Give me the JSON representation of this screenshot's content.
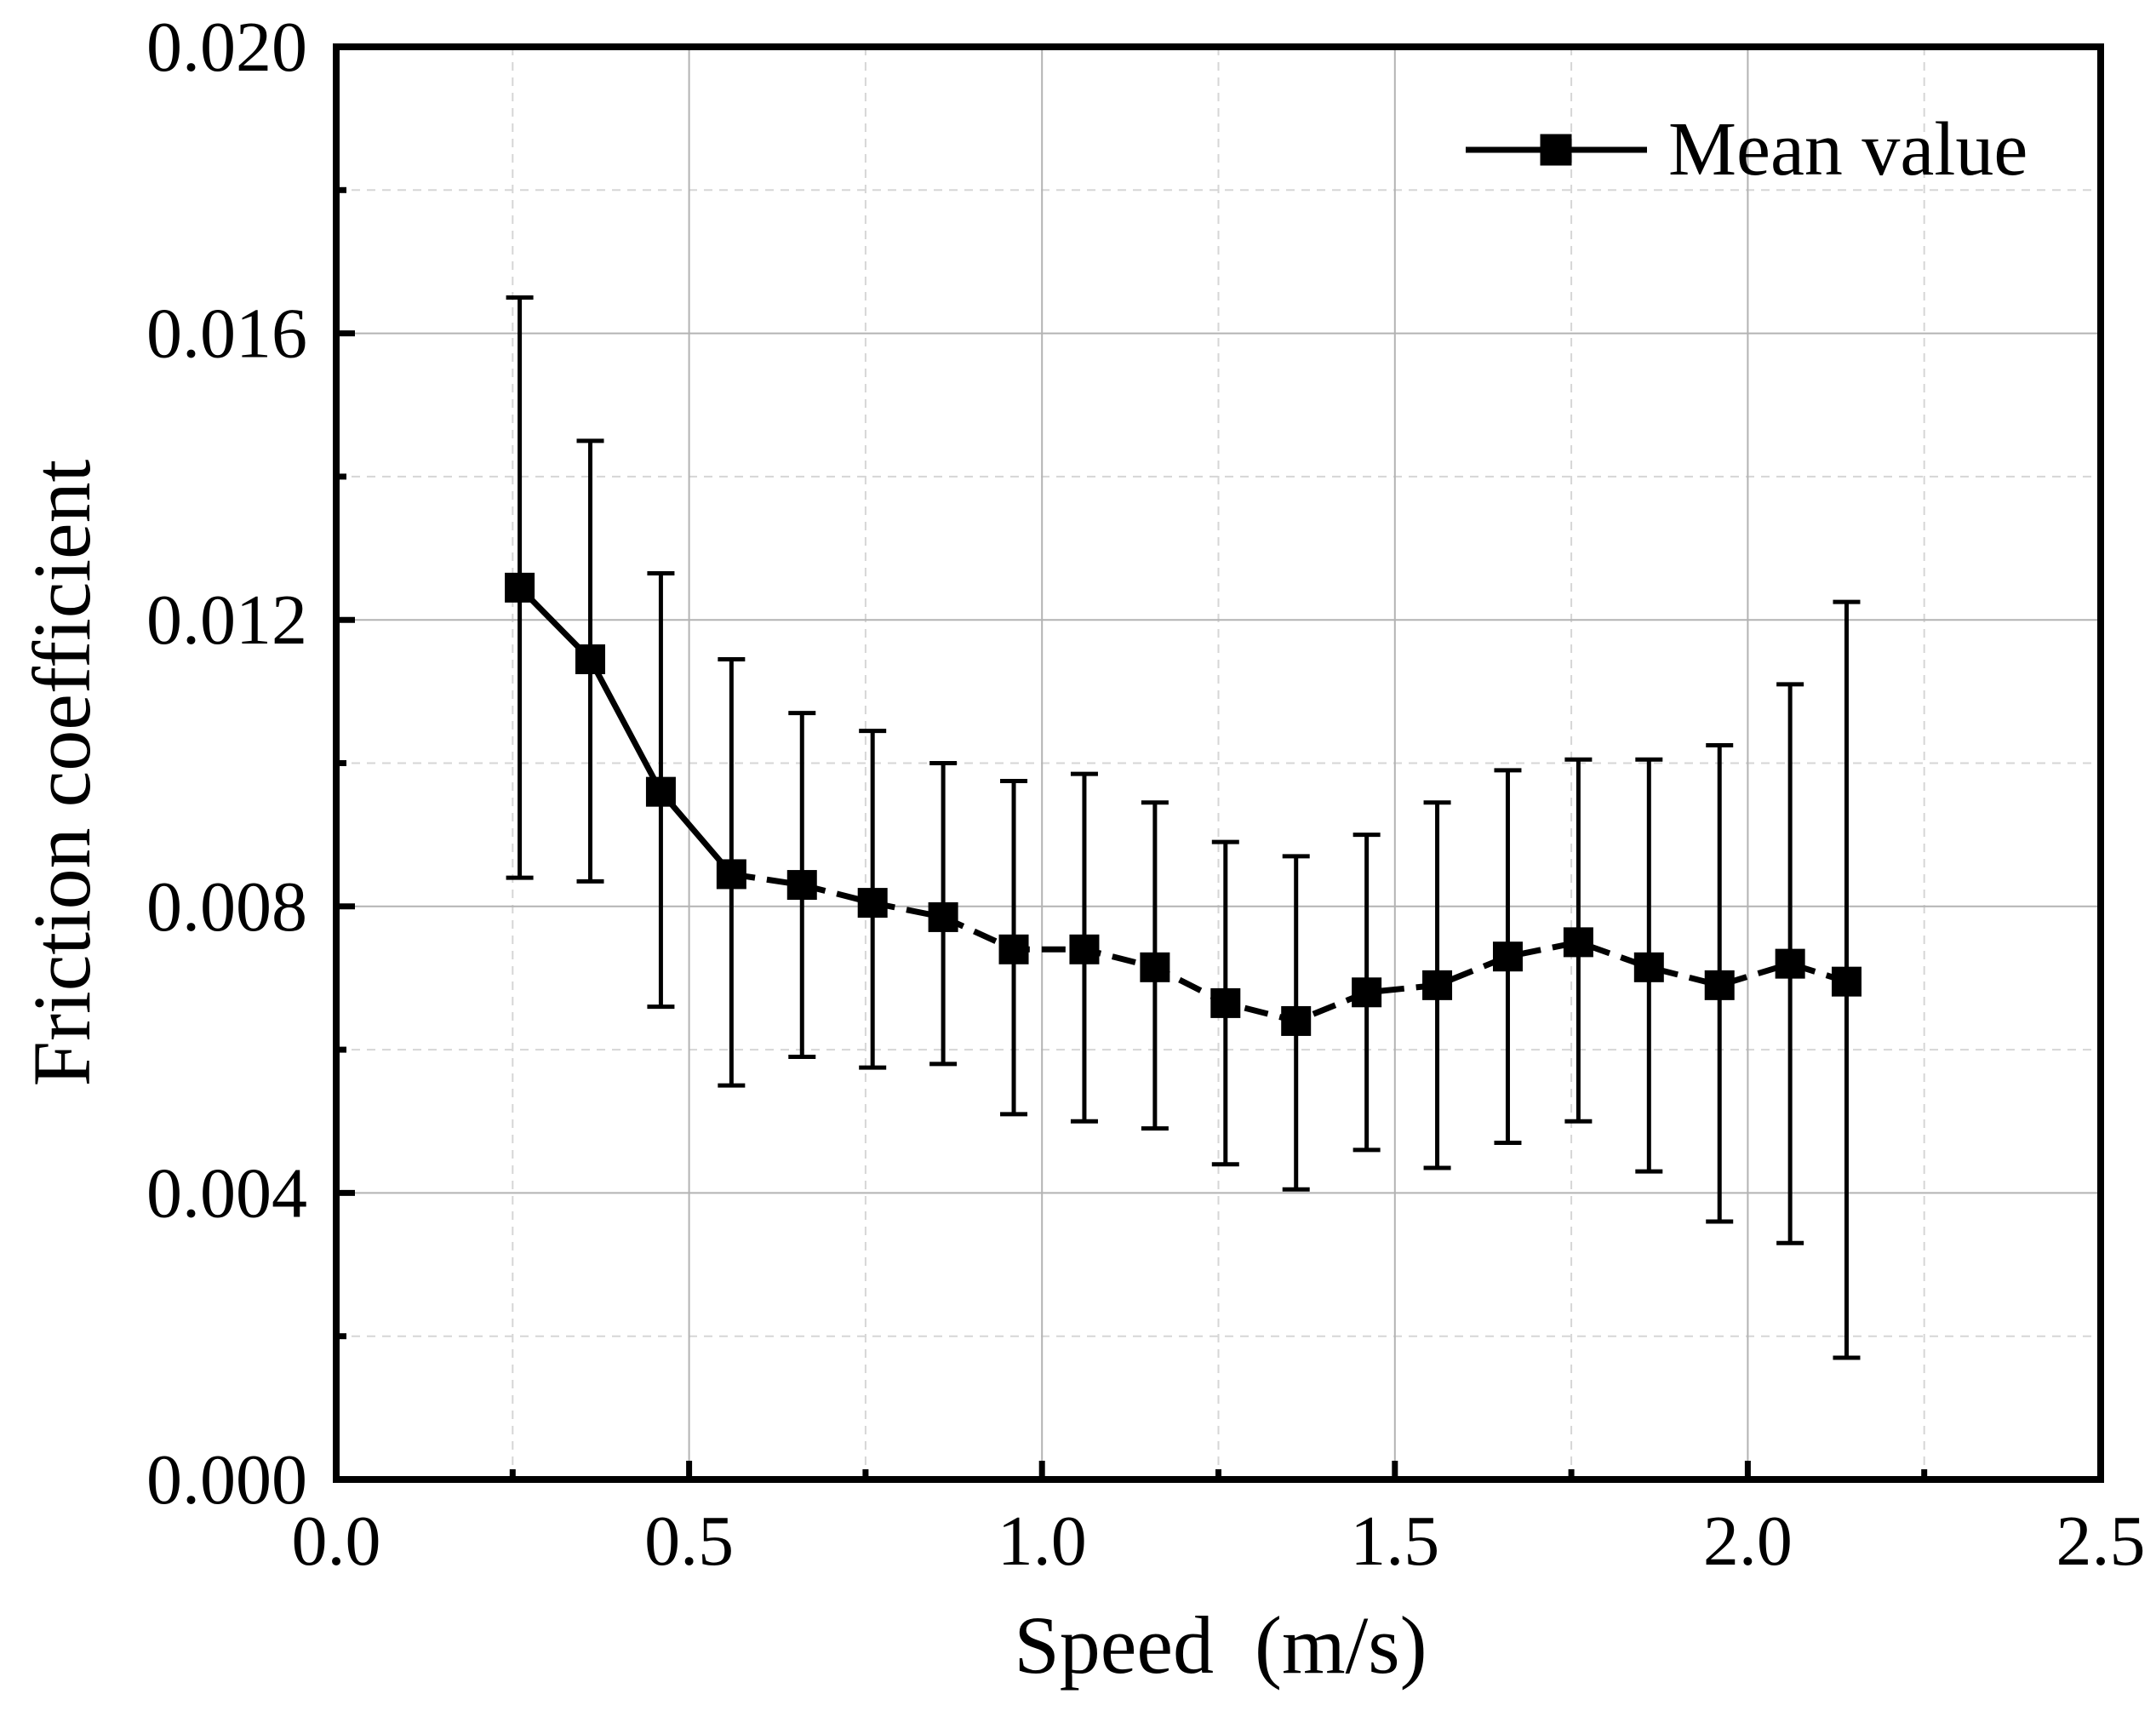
{
  "chart_data": {
    "type": "line",
    "title": "",
    "xlabel": "Speed  (m/s)",
    "ylabel": "Friction coefficient",
    "xlim": [
      0.0,
      2.5
    ],
    "ylim": [
      0.0,
      0.02
    ],
    "grid": true,
    "legend_position": "top-right",
    "x_ticks": [
      {
        "value": 0.0,
        "label": "0.0"
      },
      {
        "value": 0.5,
        "label": "0.5"
      },
      {
        "value": 1.0,
        "label": "1.0"
      },
      {
        "value": 1.5,
        "label": "1.5"
      },
      {
        "value": 2.0,
        "label": "2.0"
      },
      {
        "value": 2.5,
        "label": "2.5"
      }
    ],
    "y_ticks": [
      {
        "value": 0.0,
        "label": "0.000"
      },
      {
        "value": 0.004,
        "label": "0.004"
      },
      {
        "value": 0.008,
        "label": "0.008"
      },
      {
        "value": 0.012,
        "label": "0.012"
      },
      {
        "value": 0.016,
        "label": "0.016"
      },
      {
        "value": 0.02,
        "label": "0.020"
      }
    ],
    "x_minor_ticks": [
      0.25,
      0.75,
      1.25,
      1.75,
      2.25
    ],
    "y_minor_ticks": [
      0.002,
      0.006,
      0.01,
      0.014,
      0.018
    ],
    "series": [
      {
        "name": "Mean value",
        "marker": "square",
        "color": "#000000",
        "solid_through_index": 3,
        "x": [
          0.26,
          0.36,
          0.46,
          0.56,
          0.66,
          0.76,
          0.86,
          0.96,
          1.06,
          1.16,
          1.26,
          1.36,
          1.46,
          1.56,
          1.66,
          1.76,
          1.86,
          1.96,
          2.06,
          2.14
        ],
        "y": [
          0.01245,
          0.01145,
          0.0096,
          0.00845,
          0.0083,
          0.00805,
          0.00785,
          0.0074,
          0.0074,
          0.00715,
          0.00665,
          0.0064,
          0.0068,
          0.0069,
          0.0073,
          0.0075,
          0.00715,
          0.0069,
          0.0072,
          0.00695
        ],
        "y_err_low": [
          0.0084,
          0.00835,
          0.0066,
          0.0055,
          0.0059,
          0.00575,
          0.0058,
          0.0051,
          0.005,
          0.0049,
          0.0044,
          0.00405,
          0.0046,
          0.00435,
          0.0047,
          0.005,
          0.0043,
          0.0036,
          0.0033,
          0.0017
        ],
        "y_err_high": [
          0.0165,
          0.0145,
          0.01265,
          0.01145,
          0.0107,
          0.01045,
          0.01,
          0.00975,
          0.00985,
          0.00945,
          0.0089,
          0.0087,
          0.009,
          0.00945,
          0.0099,
          0.01005,
          0.01005,
          0.01025,
          0.0111,
          0.01225
        ]
      }
    ]
  }
}
